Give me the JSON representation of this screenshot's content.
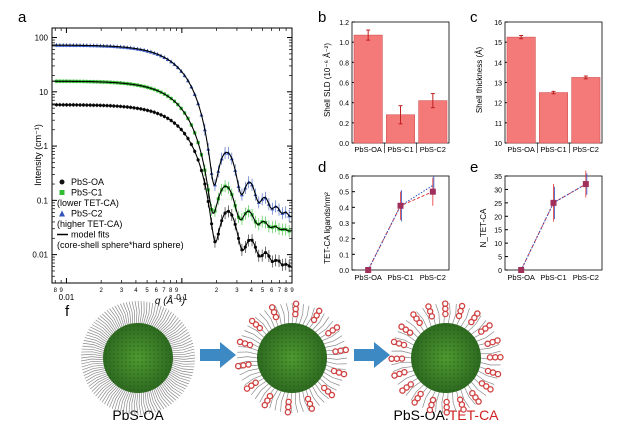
{
  "panel_labels": [
    "a",
    "b",
    "c",
    "d",
    "e",
    "f"
  ],
  "colors": {
    "oa": "#111111",
    "c1": "#33bb33",
    "c2": "#3355bb",
    "bar_fill": "#f47a7a",
    "bar_edge": "#d05050",
    "marker": "#a0305a",
    "line_red": "#e03030",
    "line_blue": "#3050c0",
    "nc_green": "#3b7a2a",
    "ligand": "#8a8a8a",
    "tet": "#d04040",
    "arrow": "#3d89c4"
  },
  "chart_data": [
    {
      "panel": "a",
      "type": "scatter",
      "xscale": "log",
      "yscale": "log",
      "xlim": [
        0.0075,
        0.9
      ],
      "ylim": [
        0.003,
        150
      ],
      "xlabel": "q (Å⁻¹)",
      "ylabel": "Intensity (cm⁻¹)",
      "x_tick_labels": [
        "0.01",
        "0.1"
      ],
      "y_tick_labels": [
        "100",
        "10",
        "1",
        "0.1",
        "0.01"
      ],
      "x_minor_labels": [
        "8",
        "9",
        "2",
        "3",
        "4",
        "5",
        "6",
        "7",
        "8",
        "9",
        "2",
        "3",
        "4",
        "5",
        "6",
        "7",
        "8",
        "9"
      ],
      "series": [
        {
          "name": "PbS-OA",
          "key": "oa",
          "I0": 7,
          "R": 23,
          "bg": 0.005
        },
        {
          "name": "PbS-C1",
          "key": "c1",
          "I0": 19,
          "R": 24,
          "bg": 0.025
        },
        {
          "name": "PbS-C2",
          "key": "c2",
          "I0": 88,
          "R": 23.5,
          "bg": 0.04
        }
      ],
      "legend": [
        {
          "text": "PbS-OA",
          "marker": "circle",
          "key": "oa"
        },
        {
          "text": "PbS-C1",
          "marker": "square",
          "key": "c1"
        },
        {
          "text": "(lower TET-CA)",
          "marker": "",
          "key": ""
        },
        {
          "text": "PbS-C2",
          "marker": "triangle",
          "key": "c2"
        },
        {
          "text": "(higher TET-CA)",
          "marker": "",
          "key": ""
        },
        {
          "text": "model fits",
          "marker": "line",
          "key": ""
        },
        {
          "text": "(core-shell sphere*hard sphere)",
          "marker": "",
          "key": ""
        }
      ],
      "legend_placement": "bottom-left"
    },
    {
      "panel": "b",
      "type": "bar",
      "categories": [
        "PbS-OA",
        "PbS-C1",
        "PbS-C2"
      ],
      "values": [
        1.07,
        0.28,
        0.42
      ],
      "errors": [
        0.05,
        0.09,
        0.07
      ],
      "ylabel": "Shell SLD (10⁻⁶ Å⁻²)",
      "ylim": [
        0,
        1.2
      ],
      "y_ticks": [
        "0.0",
        "0.2",
        "0.4",
        "0.6",
        "0.8",
        "1.0",
        "1.2"
      ]
    },
    {
      "panel": "c",
      "type": "bar",
      "categories": [
        "PbS-OA",
        "PbS-C1",
        "PbS-C2"
      ],
      "values": [
        15.25,
        12.5,
        13.25
      ],
      "errors": [
        0.08,
        0.06,
        0.07
      ],
      "ylabel": "Shell thickness (Å)",
      "ylim": [
        10,
        16
      ],
      "y_ticks": [
        "10",
        "11",
        "12",
        "13",
        "14",
        "15",
        "16"
      ]
    },
    {
      "panel": "d",
      "type": "line",
      "categories": [
        "PbS-OA",
        "PbS-C1",
        "PbS-C2"
      ],
      "series": [
        {
          "key": "red",
          "values": [
            0,
            0.41,
            0.5
          ],
          "errors": [
            0,
            0.09,
            0.09
          ]
        },
        {
          "key": "blue",
          "values": [
            0,
            0.41,
            0.54
          ],
          "errors": [
            0,
            0.1,
            0.06
          ]
        }
      ],
      "ylabel": "TET-CA ligands/nm²",
      "ylim": [
        0,
        0.6
      ],
      "y_ticks": [
        "0.0",
        "0.1",
        "0.2",
        "0.3",
        "0.4",
        "0.5",
        "0.6"
      ]
    },
    {
      "panel": "e",
      "type": "line",
      "categories": [
        "PbS-OA",
        "PbS-C1",
        "PbS-C2"
      ],
      "series": [
        {
          "key": "red",
          "values": [
            0,
            25,
            32
          ],
          "errors": [
            0,
            7,
            5
          ]
        },
        {
          "key": "blue",
          "values": [
            0,
            25,
            32
          ],
          "errors": [
            0,
            6,
            4
          ]
        }
      ],
      "ylabel": "N_TET-CA",
      "ylim": [
        0,
        35
      ],
      "y_ticks": [
        "0",
        "5",
        "10",
        "15",
        "20",
        "25",
        "30",
        "35"
      ]
    }
  ],
  "schematic": {
    "label_left": "PbS-OA",
    "label_right_prefix": "PbS-OA:",
    "label_right_suffix": "TET-CA"
  }
}
